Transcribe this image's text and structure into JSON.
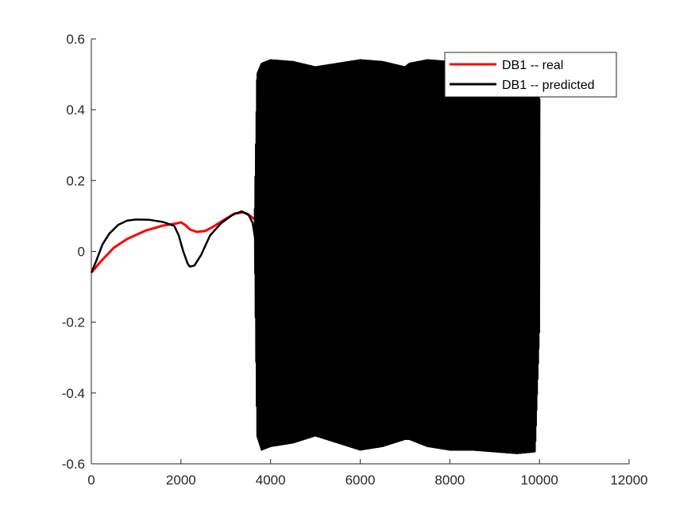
{
  "chart_data": {
    "type": "line",
    "title": "",
    "xlabel": "",
    "ylabel": "",
    "xlim": [
      0,
      12000
    ],
    "ylim": [
      -0.6,
      0.6
    ],
    "grid": false,
    "legend_position": "top-right",
    "x_ticks": [
      0,
      2000,
      4000,
      6000,
      8000,
      10000,
      12000
    ],
    "x_tick_labels": [
      "0",
      "2000",
      "4000",
      "6000",
      "8000",
      "10000",
      "12000"
    ],
    "y_ticks": [
      -0.6,
      -0.4,
      -0.2,
      0,
      0.2,
      0.4,
      0.6
    ],
    "y_tick_labels": [
      "-0.6",
      "-0.4",
      "-0.2",
      "0",
      "0.2",
      "0.4",
      "0.6"
    ],
    "series": [
      {
        "name": "DB1 -- real",
        "color": "#ff0000",
        "x": [
          0,
          200,
          500,
          800,
          1200,
          1600,
          1900,
          2000,
          2100,
          2200,
          2350,
          2550,
          2750,
          3000,
          3200,
          3400,
          3550,
          3650
        ],
        "y": [
          -0.06,
          -0.03,
          0.01,
          0.035,
          0.058,
          0.073,
          0.079,
          0.082,
          0.074,
          0.062,
          0.055,
          0.058,
          0.072,
          0.092,
          0.107,
          0.11,
          0.1,
          0.09
        ]
      },
      {
        "name": "DB1 -- predicted",
        "color": "#000000",
        "x": [
          0,
          100,
          250,
          400,
          600,
          800,
          1000,
          1300,
          1600,
          1850,
          1950,
          2050,
          2150,
          2200,
          2300,
          2450,
          2650,
          2900,
          3150,
          3350,
          3500,
          3600,
          3650
        ],
        "y": [
          -0.06,
          -0.03,
          0.02,
          0.05,
          0.075,
          0.087,
          0.09,
          0.089,
          0.083,
          0.072,
          0.045,
          0.0,
          -0.035,
          -0.043,
          -0.04,
          -0.01,
          0.045,
          0.08,
          0.103,
          0.113,
          0.105,
          0.08,
          0.04
        ],
        "oscillation": {
          "x_start": 3650,
          "x_end": 10000,
          "upper_envelope_x": [
            3650,
            3700,
            3800,
            4000,
            4500,
            5000,
            5500,
            6000,
            6500,
            7000,
            7100,
            7500,
            8000,
            8500,
            9000,
            9500,
            9900,
            10000
          ],
          "upper_envelope_y": [
            0.12,
            0.5,
            0.53,
            0.54,
            0.535,
            0.52,
            0.53,
            0.54,
            0.535,
            0.52,
            0.53,
            0.54,
            0.535,
            0.525,
            0.515,
            0.5,
            0.47,
            0.43
          ],
          "lower_envelope_x": [
            3650,
            3700,
            3800,
            4000,
            4500,
            5000,
            5500,
            6000,
            6500,
            7000,
            7100,
            7500,
            8000,
            8500,
            9000,
            9500,
            9900,
            10000
          ],
          "lower_envelope_y": [
            0.0,
            -0.52,
            -0.56,
            -0.55,
            -0.54,
            -0.52,
            -0.54,
            -0.56,
            -0.55,
            -0.53,
            -0.53,
            -0.55,
            -0.56,
            -0.56,
            -0.565,
            -0.57,
            -0.565,
            -0.2
          ]
        }
      }
    ]
  }
}
